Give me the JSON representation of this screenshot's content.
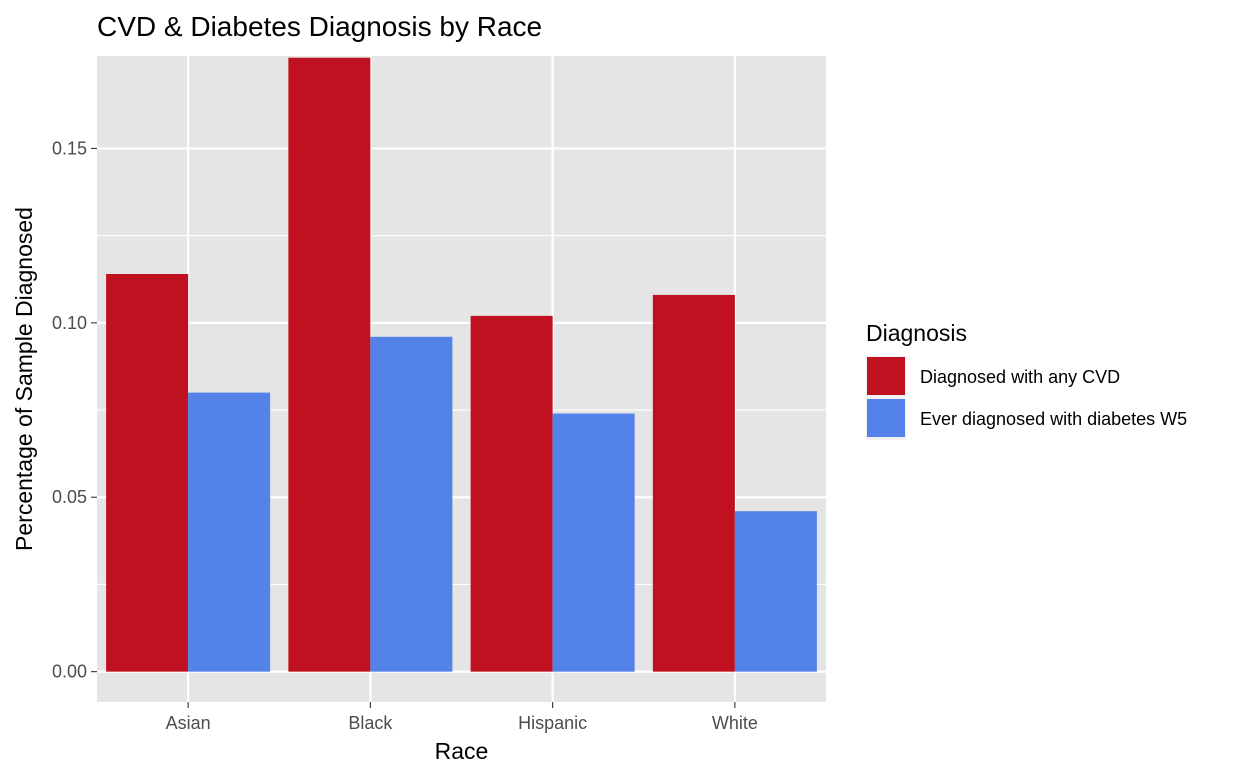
{
  "chart_data": {
    "type": "bar",
    "title": "CVD & Diabetes Diagnosis by Race",
    "xlabel": "Race",
    "ylabel": "Percentage of Sample Diagnosed",
    "categories": [
      "Asian",
      "Black",
      "Hispanic",
      "White"
    ],
    "series": [
      {
        "name": "Diagnosed with any CVD",
        "color": "#bf111f",
        "values": [
          0.114,
          0.176,
          0.102,
          0.108
        ]
      },
      {
        "name": "Ever diagnosed with diabetes W5",
        "color": "#5383e8",
        "values": [
          0.08,
          0.096,
          0.074,
          0.046
        ]
      }
    ],
    "ylim": [
      -0.0087,
      0.1765
    ],
    "yticks": [
      0.0,
      0.05,
      0.1,
      0.15
    ],
    "ytick_labels": [
      "0.00",
      "0.05",
      "0.10",
      "0.15"
    ],
    "grid": true,
    "panel_background": "#e5e5e5",
    "grid_color": "#ffffff",
    "legend": {
      "title": "Diagnosis",
      "position": "right"
    }
  }
}
